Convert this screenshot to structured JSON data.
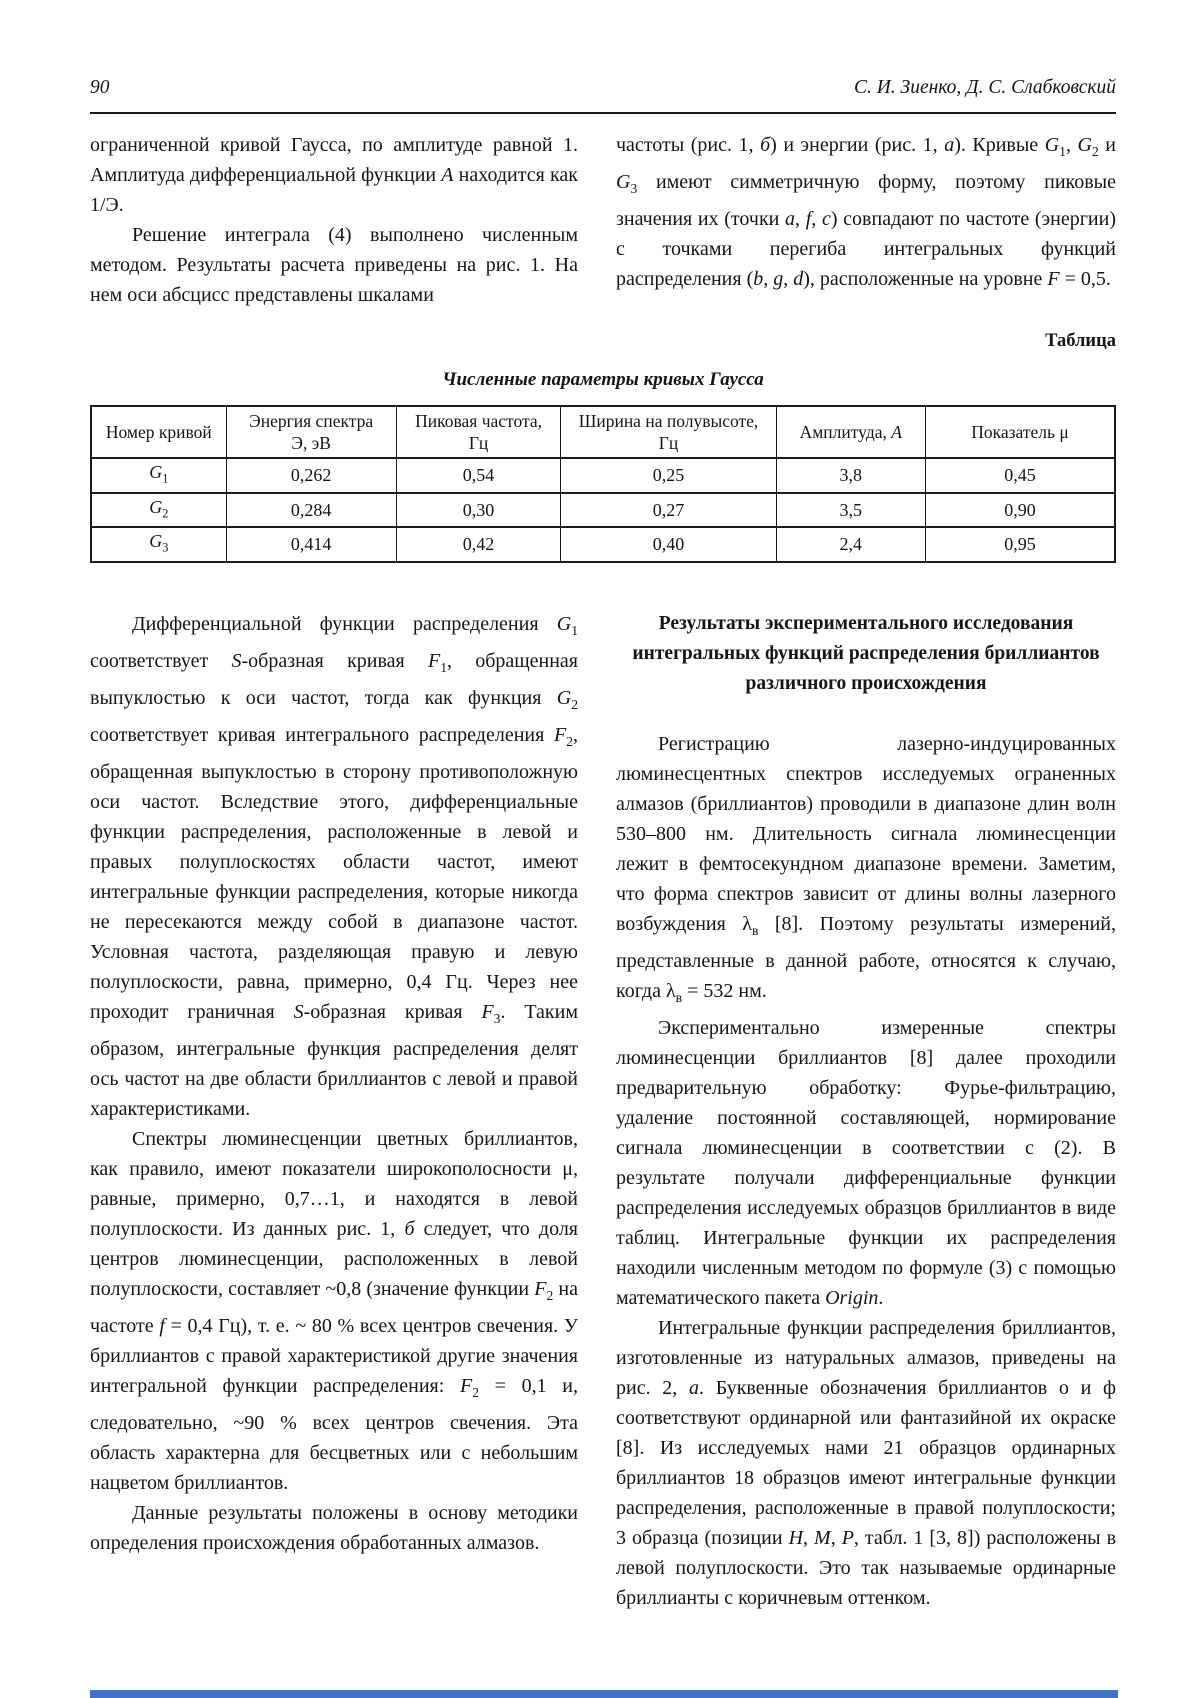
{
  "page": {
    "number": "90",
    "authors": "С. И. Зиенко, Д. С. Слабковский"
  },
  "intro": {
    "left": [
      "ограниченной кривой Гаусса, по амплитуде равной 1. Амплитуда дифференциальной функции <i>A</i> находится как 1/Э.",
      "Решение интеграла (4) выполнено численным методом. Результаты расчета приведены на рис. 1. На нем оси абсцисс представлены шкалами"
    ],
    "right": [
      "частоты (рис. 1, <i>б</i>) и энергии (рис. 1, <i>а</i>). Кривые <i>G</i><sub>1</sub>, <i>G</i><sub>2</sub> и <i>G</i><sub>3</sub> имеют симметричную форму, поэтому пиковые значения их (точки <i>a</i>, <i>f</i>, <i>c</i>) совпадают по частоте (энергии) с точками перегиба интегральных функций распределения (<i>b</i>, <i>g</i>, <i>d</i>), расположенные на уровне <i>F</i> = 0,5."
    ]
  },
  "table": {
    "label": "Таблица",
    "title": "Численные параметры кривых Гаусса",
    "headers": [
      "Номер кривой",
      "Энергия спектра<br>Э, эВ",
      "Пиковая частота,<br>Гц",
      "Ширина на полувысоте,<br>Гц",
      "Амплитуда, <i>A</i>",
      "Показатель μ"
    ],
    "rows": [
      [
        "<i>G</i><sub>1</sub>",
        "0,262",
        "0,54",
        "0,25",
        "3,8",
        "0,45"
      ],
      [
        "<i>G</i><sub>2</sub>",
        "0,284",
        "0,30",
        "0,27",
        "3,5",
        "0,90"
      ],
      [
        "<i>G</i><sub>3</sub>",
        "0,414",
        "0,42",
        "0,40",
        "2,4",
        "0,95"
      ]
    ]
  },
  "body": {
    "left": [
      "Дифференциальной функции распределения <i>G</i><sub>1</sub> соответствует <i>S</i>-образная кривая <i>F</i><sub>1</sub>, обращенная выпуклостью к оси частот, тогда как функция <i>G</i><sub>2</sub> соответствует кривая интегрального распределения <i>F</i><sub>2</sub>, обращенная выпуклостью в сторону противоположную оси частот. Вследствие этого, дифференциальные функции распределения, расположенные в левой и правых полуплоскостях области частот, имеют интегральные функции распределения, которые никогда не пересекаются между собой в диапазоне частот. Условная частота, разделяющая правую и левую полуплоскости, равна, примерно, 0,4 Гц. Через нее проходит граничная <i>S</i>-образная кривая <i>F</i><sub>3</sub>. Таким образом, интегральные функция распределения делят ось частот на две области бриллиантов с левой и правой характеристиками.",
      "Спектры люминесценции цветных бриллиантов, как правило, имеют показатели широкополосности μ, равные, примерно, 0,7…1, и находятся в левой полуплоскости. Из данных рис. 1, <i>б</i> следует, что доля центров люминесценции, расположенных в левой полуплоскости, составляет ~0,8 (значение функции <i>F</i><sub>2</sub> на частоте <i>f</i> = 0,4 Гц), т. е. ~ 80 % всех центров свечения. У бриллиантов с правой характеристикой другие значения интегральной функции распределения: <i>F</i><sub>2</sub> = 0,1 и, следовательно, ~90 % всех центров свечения. Эта область характерна для бесцветных или с небольшим нацветом бриллиантов.",
      "Данные результаты положены в основу методики определения происхождения обработанных алмазов."
    ],
    "right_heading": "Результаты экспериментального исследования интегральных функций распределения бриллиантов различного происхождения",
    "right": [
      "Регистрацию лазерно-индуцированных люминесцентных спектров исследуемых ограненных алмазов (бриллиантов) проводили в диапазоне длин волн 530–800 нм. Длительность сигнала люминесценции лежит в фемтосекундном диапазоне времени. Заметим, что форма спектров зависит от длины волны лазерного возбуждения λ<sub>в</sub> [8]. Поэтому результаты измерений, представленные в данной работе, относятся к случаю, когда λ<sub>в</sub> = 532 нм.",
      "Экспериментально измеренные спектры люминесценции бриллиантов [8] далее проходили предварительную обработку: Фурье-фильтрацию, удаление постоянной составляющей, нормирование сигнала люминесценции в соответствии с (2). В результате получали дифференциальные функции распределения исследуемых образцов бриллиантов в виде таблиц. Интегральные функции их распределения находили численным методом по формуле (3) с помощью математического пакета <i>Origin</i>.",
      "Интегральные функции распределения бриллиантов, изготовленные из натуральных алмазов, приведены на рис. 2, <i>а</i>. Буквенные обозначения бриллиантов о и ф соответствуют ординарной или фантазийной их окраске [8]. Из исследуемых нами 21 образцов ординарных бриллиантов 18 образцов имеют интегральные функции распределения, расположенные в правой полуплоскости; 3 образца (позиции <i>Н</i>, <i>М</i>, <i>Р</i>, табл. 1 [3, 8]) расположены в левой полуплоскости. Это так называемые ординарные бриллианты с коричневым оттенком."
    ]
  },
  "footer": {
    "accent_color": "#4472c4"
  }
}
